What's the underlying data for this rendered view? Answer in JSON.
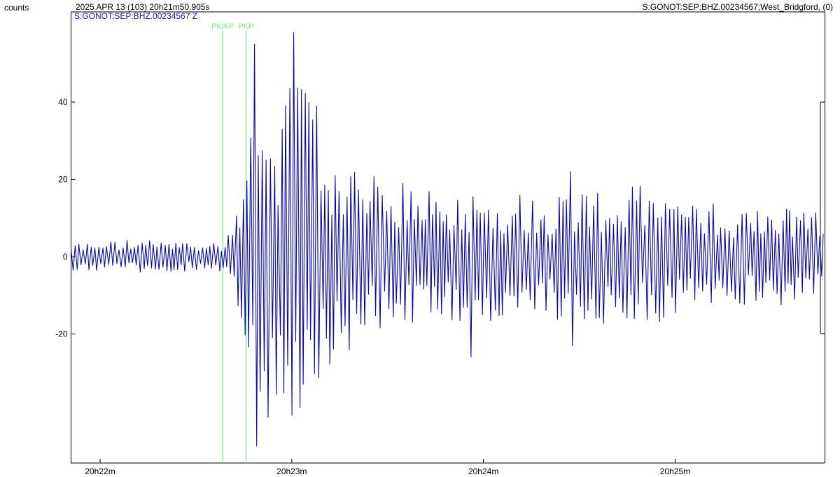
{
  "header": {
    "units": "counts",
    "datetime": "2025 APR 13 (103)  20h21m50.905s",
    "station": "S:GONOT:SEP:BHZ.00234567;West_Bridgford, (0)",
    "trace_label": "S:GONOT:SEP:BHZ.00234567 Z"
  },
  "colors": {
    "trace": "#0a0aa0",
    "phase": "#7ee87e",
    "label_blue": "#1a1aa8",
    "axis": "#000000"
  },
  "chart_data": {
    "type": "line",
    "title": "",
    "xlabel": "",
    "ylabel": "counts",
    "xlim": [
      "20h21m50.905s",
      "20h25m47s"
    ],
    "ylim": [
      -55,
      66
    ],
    "yticks": [
      -20,
      0,
      20,
      40
    ],
    "ytick_labels": [
      "-20",
      "0",
      "20",
      "40"
    ],
    "xticks": [
      "20h22m",
      "20h23m",
      "20h24m",
      "20h25m"
    ],
    "xtick_seconds": [
      9.1,
      69.1,
      129.1,
      189.1
    ],
    "x_span_seconds": 236,
    "grid": false,
    "phases": [
      {
        "name": "PKIKP",
        "time_seconds": 47.5
      },
      {
        "name": "PKP",
        "time_seconds": 54.8
      }
    ],
    "series": [
      {
        "name": "S:GONOT:SEP:BHZ.00234567 Z",
        "envelope_seconds": [
          0,
          20,
          40,
          47,
          51,
          54,
          56,
          60,
          63,
          66,
          70,
          76,
          82,
          90,
          100,
          110,
          120,
          135,
          150,
          160,
          170,
          180,
          190,
          200,
          215,
          225,
          236
        ],
        "envelope_counts": [
          3.5,
          4.5,
          3.5,
          4,
          9,
          18,
          38,
          48,
          40,
          33,
          55,
          38,
          28,
          22,
          20,
          18,
          17,
          17,
          16,
          18,
          17,
          19,
          15,
          14,
          13,
          13,
          12
        ],
        "peak_events": [
          {
            "time_seconds": 57.6,
            "counts": 55
          },
          {
            "time_seconds": 57.9,
            "counts": -49
          },
          {
            "time_seconds": 69.6,
            "counts": 58
          },
          {
            "time_seconds": 69.2,
            "counts": -41
          },
          {
            "time_seconds": 76.4,
            "counts": 39
          },
          {
            "time_seconds": 66.1,
            "counts": 33
          },
          {
            "time_seconds": 72.5,
            "counts": -33
          },
          {
            "time_seconds": 124.9,
            "counts": -26
          },
          {
            "time_seconds": 156.3,
            "counts": -23
          },
          {
            "time_seconds": 156.0,
            "counts": 22
          }
        ],
        "dominant_period_seconds": 1.2
      }
    ]
  }
}
